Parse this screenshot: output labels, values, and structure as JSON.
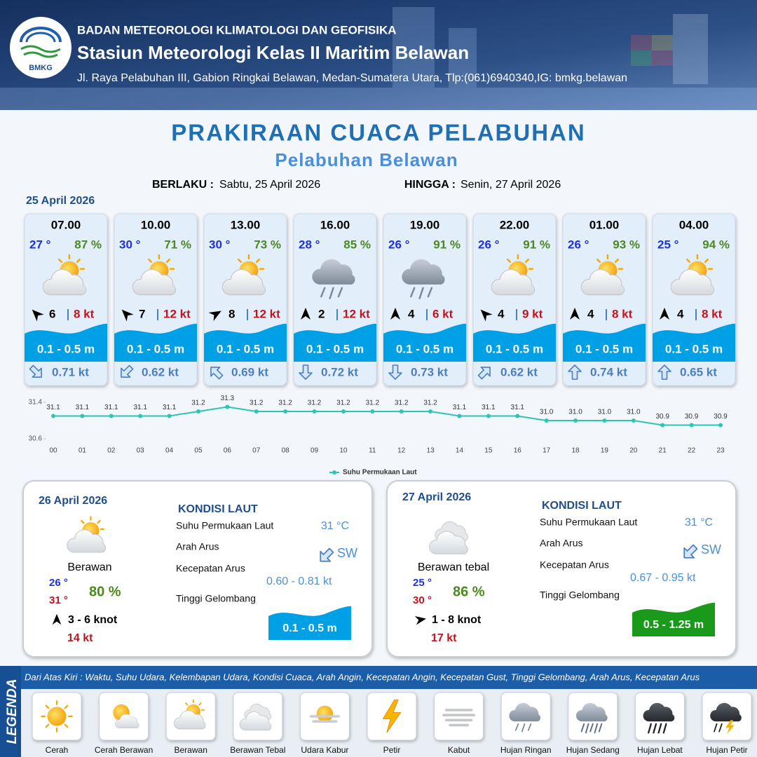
{
  "header": {
    "logo_text": "BMKG",
    "agency": "BADAN METEOROLOGI KLIMATOLOGI DAN GEOFISIKA",
    "station": "Stasiun Meteorologi Kelas II Maritim Belawan",
    "address": "Jl. Raya Pelabuhan III, Gabion Ringkai Belawan, Medan-Sumatera Utara, Tlp:(061)6940340,IG: bmkg.belawan"
  },
  "title": "PRAKIRAAN CUACA PELABUHAN",
  "subtitle": "Pelabuhan Belawan",
  "validity": {
    "from_label": "BERLAKU :",
    "from": "Sabtu, 25 April 2026",
    "to_label": "HINGGA :",
    "to": "Senin, 27 April 2026"
  },
  "day1": {
    "date": "25 April 2026",
    "forecasts": [
      {
        "time": "07.00",
        "temp": "27 °",
        "humidity": "87 %",
        "wind_speed": "6",
        "gust": "8 kt",
        "wave": "0.1 - 0.5 m",
        "current": "0.71 kt"
      },
      {
        "time": "10.00",
        "temp": "30 °",
        "humidity": "71 %",
        "wind_speed": "7",
        "gust": "12 kt",
        "wave": "0.1 - 0.5 m",
        "current": "0.62 kt"
      },
      {
        "time": "13.00",
        "temp": "30 °",
        "humidity": "73 %",
        "wind_speed": "8",
        "gust": "12 kt",
        "wave": "0.1 - 0.5 m",
        "current": "0.69 kt"
      },
      {
        "time": "16.00",
        "temp": "28 °",
        "humidity": "85 %",
        "wind_speed": "2",
        "gust": "12 kt",
        "wave": "0.1 - 0.5 m",
        "current": "0.72 kt"
      },
      {
        "time": "19.00",
        "temp": "26 °",
        "humidity": "91 %",
        "wind_speed": "4",
        "gust": "6 kt",
        "wave": "0.1 - 0.5 m",
        "current": "0.73 kt"
      },
      {
        "time": "22.00",
        "temp": "26 °",
        "humidity": "91 %",
        "wind_speed": "4",
        "gust": "9 kt",
        "wave": "0.1 - 0.5 m",
        "current": "0.62 kt"
      },
      {
        "time": "01.00",
        "temp": "26 °",
        "humidity": "93 %",
        "wind_speed": "4",
        "gust": "8 kt",
        "wave": "0.1 - 0.5 m",
        "current": "0.74 kt"
      },
      {
        "time": "04.00",
        "temp": "25 °",
        "humidity": "94 %",
        "wind_speed": "4",
        "gust": "8 kt",
        "wave": "0.1 - 0.5 m",
        "current": "0.65 kt"
      }
    ]
  },
  "chart_data": {
    "type": "line",
    "x": [
      "00",
      "01",
      "02",
      "03",
      "04",
      "05",
      "06",
      "07",
      "08",
      "09",
      "10",
      "11",
      "12",
      "13",
      "14",
      "15",
      "16",
      "17",
      "18",
      "19",
      "20",
      "21",
      "22",
      "23"
    ],
    "series": [
      {
        "name": "Suhu Permukaan Laut",
        "color": "#2ec4b6",
        "values": [
          31.1,
          31.1,
          31.1,
          31.1,
          31.1,
          31.2,
          31.3,
          31.2,
          31.2,
          31.2,
          31.2,
          31.2,
          31.2,
          31.2,
          31.1,
          31.1,
          31.1,
          31.0,
          31.0,
          31.0,
          31.0,
          30.9,
          30.9,
          30.9
        ],
        "value_labels": [
          "31.1",
          "31.1",
          "31.1",
          "31.1",
          "31.1",
          "31.2",
          "31.3",
          "31.2",
          "31.2",
          "31.2",
          "31.2",
          "31.2",
          "31.2",
          "31.2",
          "31.1",
          "31.1",
          "31.1",
          "31.0",
          "31.0",
          "31.0",
          "31.0",
          "30.9",
          "30.9",
          "30.9"
        ]
      }
    ],
    "ylim": [
      30.6,
      31.4
    ],
    "yticks": [
      30.6,
      31.4
    ],
    "grid": false,
    "legend": "bottom"
  },
  "days": [
    {
      "date": "26 April 2026",
      "condition": "Berawan",
      "temp_min": "26 °",
      "temp_max": "31 °",
      "humidity": "80 %",
      "wind": "3 - 6 knot",
      "gust": "14 kt",
      "sea": {
        "title": "KONDISI LAUT",
        "sst_label": "Suhu Permukaan Laut",
        "sst": "31 °C",
        "current_dir_label": "Arah Arus",
        "current_dir": "SW",
        "current_speed_label": "Kecepatan Arus",
        "current_speed": "0.60 - 0.81 kt",
        "wave_label": "Tinggi Gelombang",
        "wave": "0.1 - 0.5 m"
      }
    },
    {
      "date": "27 April 2026",
      "condition": "Berawan tebal",
      "temp_min": "25 °",
      "temp_max": "30 °",
      "humidity": "86 %",
      "wind": "1 - 8 knot",
      "gust": "17 kt",
      "sea": {
        "title": "KONDISI LAUT",
        "sst_label": "Suhu Permukaan Laut",
        "sst": "31 °C",
        "current_dir_label": "Arah Arus",
        "current_dir": "SW",
        "current_speed_label": "Kecepatan Arus",
        "current_speed": "0.67 - 0.95 kt",
        "wave_label": "Tinggi Gelombang",
        "wave": "0.5 - 1.25 m"
      }
    }
  ],
  "legend": {
    "title": "LEGENDA",
    "description": "Dari Atas Kiri : Waktu, Suhu Udara, Kelembapan Udara, Kondisi Cuaca, Arah Angin, Kecepatan Angin, Kecepatan Gust, Tinggi Gelombang, Arah Arus, Kecepatan Arus",
    "items": [
      "Cerah",
      "Cerah Berawan",
      "Berawan",
      "Berawan Tebal",
      "Udara Kabur",
      "Petir",
      "Kabut",
      "Hujan Ringan",
      "Hujan Sedang",
      "Hujan Lebat",
      "Hujan Petir"
    ]
  }
}
